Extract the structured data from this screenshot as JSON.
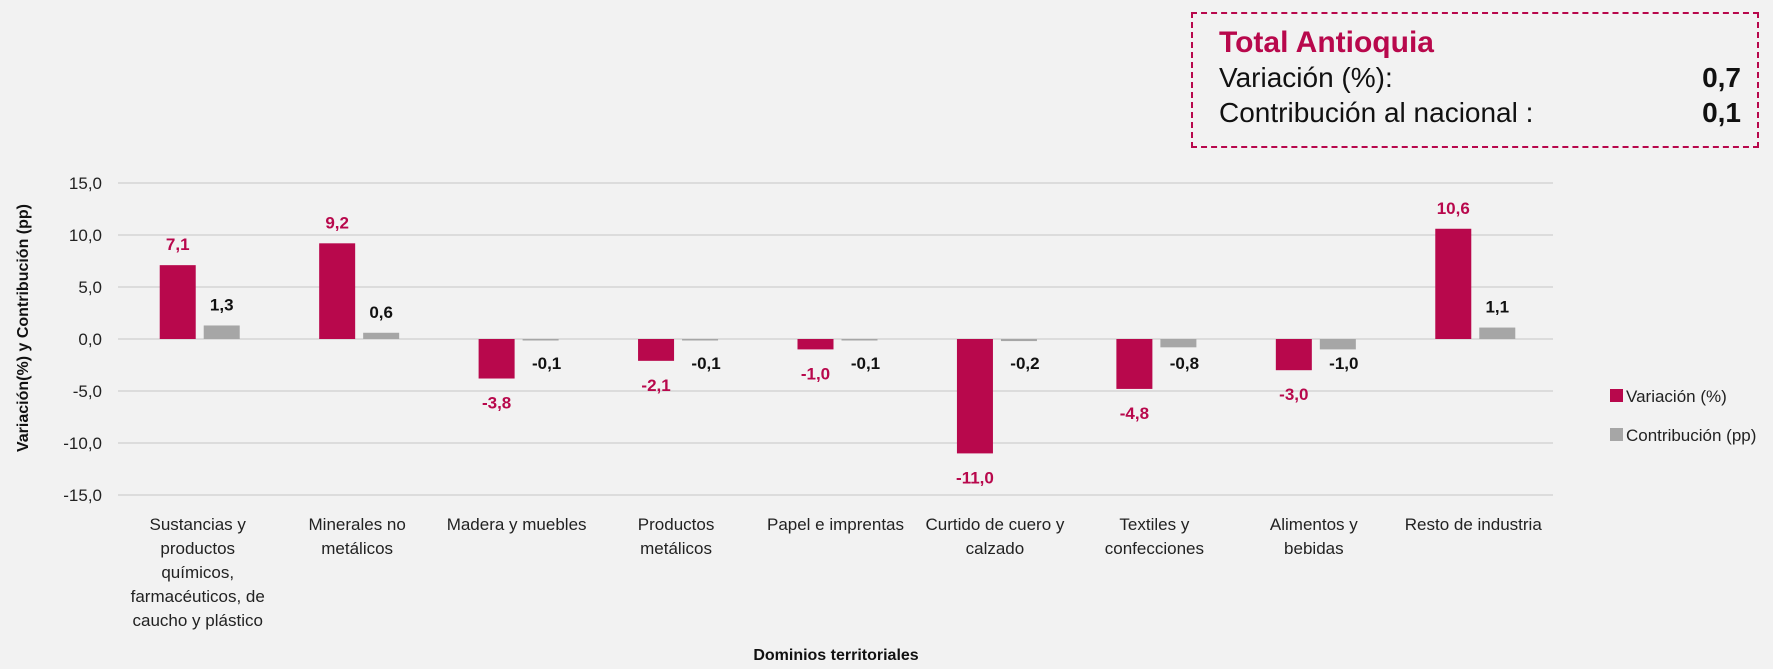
{
  "summary": {
    "title": "Total Antioquia",
    "rows": [
      {
        "label": "Variación (%):",
        "value": "0,7"
      },
      {
        "label": "Contribución al nacional :",
        "value": "0,1"
      }
    ]
  },
  "chart_data": {
    "type": "bar",
    "xlabel": "Dominios territoriales",
    "ylabel": "Variación(%)  y Contribución (pp)",
    "ylim": [
      -15,
      15
    ],
    "yticks": [
      15,
      10,
      5,
      0,
      -5,
      -10,
      -15
    ],
    "ytick_labels": [
      "15,0",
      "10,0",
      "5,0",
      "0,0",
      "-5,0",
      "-10,0",
      "-15,0"
    ],
    "grid": true,
    "legend_position": "right",
    "categories": [
      [
        "Sustancias y",
        "productos",
        "químicos,",
        "farmacéuticos, de",
        "caucho y plástico"
      ],
      [
        "Minerales no",
        "metálicos"
      ],
      [
        "Madera y muebles"
      ],
      [
        "Productos",
        "metálicos"
      ],
      [
        "Papel e imprentas"
      ],
      [
        "Curtido de cuero y",
        "calzado"
      ],
      [
        "Textiles y",
        "confecciones"
      ],
      [
        "Alimentos y",
        "bebidas"
      ],
      [
        "Resto de industria"
      ]
    ],
    "series": [
      {
        "name": "Variación (%)",
        "color": "#b8084c",
        "values": [
          7.1,
          9.2,
          -3.8,
          -2.1,
          -1.0,
          -11.0,
          -4.8,
          -3.0,
          10.6
        ],
        "labels": [
          "7,1",
          "9,2",
          "-3,8",
          "-2,1",
          "-1,0",
          "-11,0",
          "-4,8",
          "-3,0",
          "10,6"
        ]
      },
      {
        "name": "Contribución (pp)",
        "color": "#a6a6a6",
        "values": [
          1.3,
          0.6,
          -0.1,
          -0.1,
          -0.1,
          -0.2,
          -0.8,
          -1.0,
          1.1
        ],
        "labels": [
          "1,3",
          "0,6",
          "-0,1",
          "-0,1",
          "-0,1",
          "-0,2",
          "-0,8",
          "-1,0",
          "1,1"
        ]
      }
    ]
  }
}
